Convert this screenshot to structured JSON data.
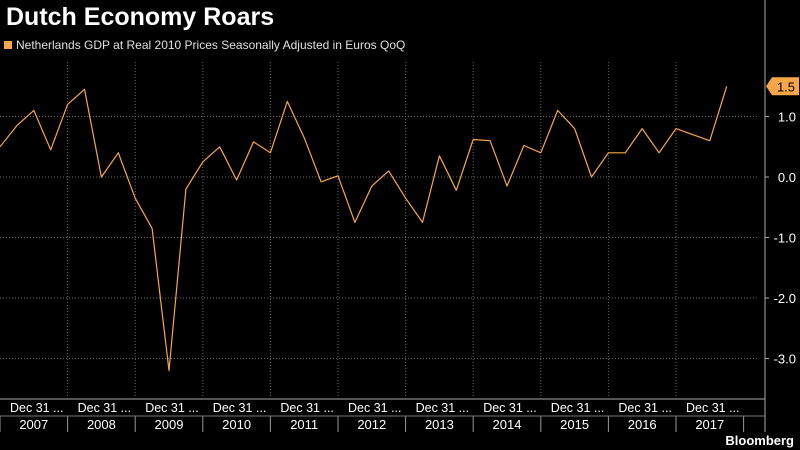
{
  "title": "Dutch Economy Roars",
  "brand": "Bloomberg",
  "colors": {
    "line": "#f7a74a",
    "background": "#000000",
    "grid": "#6a6a6a",
    "text": "#ffffff"
  },
  "chart_data": {
    "type": "line",
    "title": "Dutch Economy Roars",
    "series": [
      {
        "name": "Netherlands GDP at Real 2010 Prices Seasonally Adjusted in Euros QoQ",
        "values": [
          0.5,
          0.85,
          1.1,
          0.45,
          1.2,
          1.45,
          0.0,
          0.4,
          -0.35,
          -0.85,
          -3.2,
          -0.2,
          0.25,
          0.5,
          -0.05,
          0.58,
          0.4,
          1.25,
          0.65,
          -0.08,
          0.02,
          -0.75,
          -0.15,
          0.1,
          -0.35,
          -0.75,
          0.35,
          -0.22,
          0.62,
          0.6,
          -0.15,
          0.52,
          0.4,
          1.1,
          0.8,
          0.0,
          0.4,
          0.4,
          0.8,
          0.4,
          0.8,
          0.7,
          0.6,
          1.5
        ]
      }
    ],
    "x_start_quarter": "2006 Q4",
    "yticks": [
      1.0,
      0.0,
      -1.0,
      -2.0,
      -3.0
    ],
    "ytick_labels": [
      "1.0",
      "0.0",
      "-1.0",
      "-2.0",
      "-3.0"
    ],
    "ylim": [
      -3.4,
      1.75
    ],
    "last_value_label": "1.5",
    "xtick_label": "Dec 31 ...",
    "years": [
      "2007",
      "2008",
      "2009",
      "2010",
      "2011",
      "2012",
      "2013",
      "2014",
      "2015",
      "2016",
      "2017"
    ],
    "grid": true,
    "legend_position": "top-left"
  }
}
